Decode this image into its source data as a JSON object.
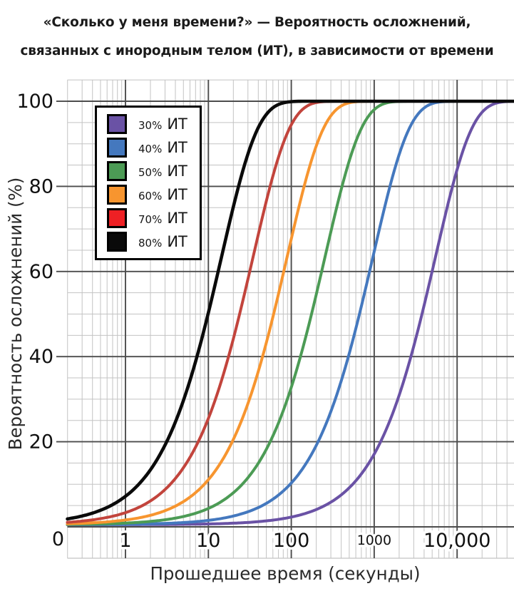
{
  "title": {
    "line1": "«Сколько у меня времени?» — Вероятность осложнений,",
    "line2": "связанных с инородным телом (ИТ), в зависимости от времени"
  },
  "chart_data": {
    "type": "line",
    "title": "«Сколько у меня времени?» — Вероятность осложнений, связанных с инородным телом (ИТ), в зависимости от времени",
    "xlabel": "Прошедшее время (секунды)",
    "ylabel": "Вероятность осложнений (%)",
    "x_scale": "log10",
    "x_range_seconds": [
      0.2,
      48000
    ],
    "ylim": [
      0,
      100
    ],
    "grid": "major+minor graph-paper",
    "legend_position": "upper-left",
    "curve_model": "P(t) = 0.5 + 99.5*(1 - exp(-t/tau))  (cumulative complication probability vs elapsed seconds)",
    "origin_label": "0",
    "x_ticks": [
      {
        "t": 1,
        "label": "1"
      },
      {
        "t": 10,
        "label": "10"
      },
      {
        "t": 100,
        "label": "100"
      },
      {
        "t": 1000,
        "label": "1000",
        "small": true
      },
      {
        "t": 10000,
        "label": "10,000"
      }
    ],
    "y_ticks": [
      {
        "p": 0,
        "label": "0"
      },
      {
        "p": 20,
        "label": "20"
      },
      {
        "p": 40,
        "label": "40"
      },
      {
        "p": 60,
        "label": "60"
      },
      {
        "p": 80,
        "label": "80"
      },
      {
        "p": 100,
        "label": "100"
      }
    ],
    "series": [
      {
        "label": "30% ИТ",
        "pct": "30%",
        "it": "ИТ",
        "color": "#6A52A5",
        "tau_seconds": 5480,
        "t_at_20pct_s": 1223,
        "t_at_50pct_s": 3800,
        "t_at_80pct_s": 8820
      },
      {
        "label": "40% ИТ",
        "pct": "40%",
        "it": "ИТ",
        "color": "#4478BE",
        "tau_seconds": 965,
        "t_at_20pct_s": 215,
        "t_at_50pct_s": 670,
        "t_at_80pct_s": 1553
      },
      {
        "label": "50% ИТ",
        "pct": "50%",
        "it": "ИТ",
        "color": "#4C9B55",
        "tau_seconds": 255,
        "t_at_20pct_s": 57,
        "t_at_50pct_s": 177,
        "t_at_80pct_s": 410
      },
      {
        "label": "60% ИТ",
        "pct": "60%",
        "it": "ИТ",
        "color": "#F7952F",
        "tau_seconds": 89,
        "t_at_20pct_s": 20,
        "t_at_50pct_s": 62,
        "t_at_80pct_s": 143
      },
      {
        "label": "70% ИТ",
        "pct": "70%",
        "it": "ИТ",
        "color": "#EE2024",
        "curve_color": "#C2443C",
        "tau_seconds": 34.6,
        "t_at_20pct_s": 7.7,
        "t_at_50pct_s": 24,
        "t_at_80pct_s": 56
      },
      {
        "label": "80% ИТ",
        "pct": "80%",
        "it": "ИТ",
        "color": "#0A0A0A",
        "tau_seconds": 14.4,
        "t_at_20pct_s": 3.2,
        "t_at_50pct_s": 10,
        "t_at_80pct_s": 23
      }
    ],
    "colors": {
      "major_grid": "#4c4c4c",
      "minor_grid": "#c3c3c3",
      "tick_text": "#111111",
      "axis_title_text": "#2a2a2a"
    }
  }
}
